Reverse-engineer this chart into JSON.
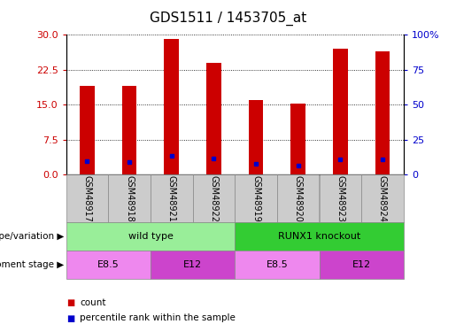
{
  "title": "GDS1511 / 1453705_at",
  "samples": [
    "GSM48917",
    "GSM48918",
    "GSM48921",
    "GSM48922",
    "GSM48919",
    "GSM48920",
    "GSM48923",
    "GSM48924"
  ],
  "counts": [
    19.0,
    19.0,
    29.2,
    24.0,
    16.0,
    15.2,
    27.0,
    26.5
  ],
  "percentile_ranks": [
    9.5,
    9.0,
    13.0,
    11.5,
    7.5,
    6.5,
    11.0,
    11.0
  ],
  "bar_color": "#cc0000",
  "dot_color": "#0000cc",
  "left_ylim": [
    0,
    30
  ],
  "right_ylim": [
    0,
    100
  ],
  "left_yticks": [
    0,
    7.5,
    15,
    22.5,
    30
  ],
  "right_yticks": [
    0,
    25,
    50,
    75,
    100
  ],
  "right_yticklabels": [
    "0",
    "25",
    "50",
    "75",
    "100%"
  ],
  "genotype_groups": [
    {
      "label": "wild type",
      "start": 0,
      "end": 4,
      "color": "#99ee99"
    },
    {
      "label": "RUNX1 knockout",
      "start": 4,
      "end": 8,
      "color": "#33cc33"
    }
  ],
  "development_groups": [
    {
      "label": "E8.5",
      "start": 0,
      "end": 2,
      "color": "#ee88ee"
    },
    {
      "label": "E12",
      "start": 2,
      "end": 4,
      "color": "#cc44cc"
    },
    {
      "label": "E8.5",
      "start": 4,
      "end": 6,
      "color": "#ee88ee"
    },
    {
      "label": "E12",
      "start": 6,
      "end": 8,
      "color": "#cc44cc"
    }
  ],
  "legend_count_color": "#cc0000",
  "legend_pct_color": "#0000cc",
  "genotype_label": "genotype/variation",
  "development_label": "development stage",
  "bar_width": 0.35,
  "sample_box_color": "#cccccc",
  "background_color": "#ffffff",
  "title_fontsize": 11,
  "tick_fontsize": 8,
  "label_fontsize": 8,
  "sample_fontsize": 7
}
